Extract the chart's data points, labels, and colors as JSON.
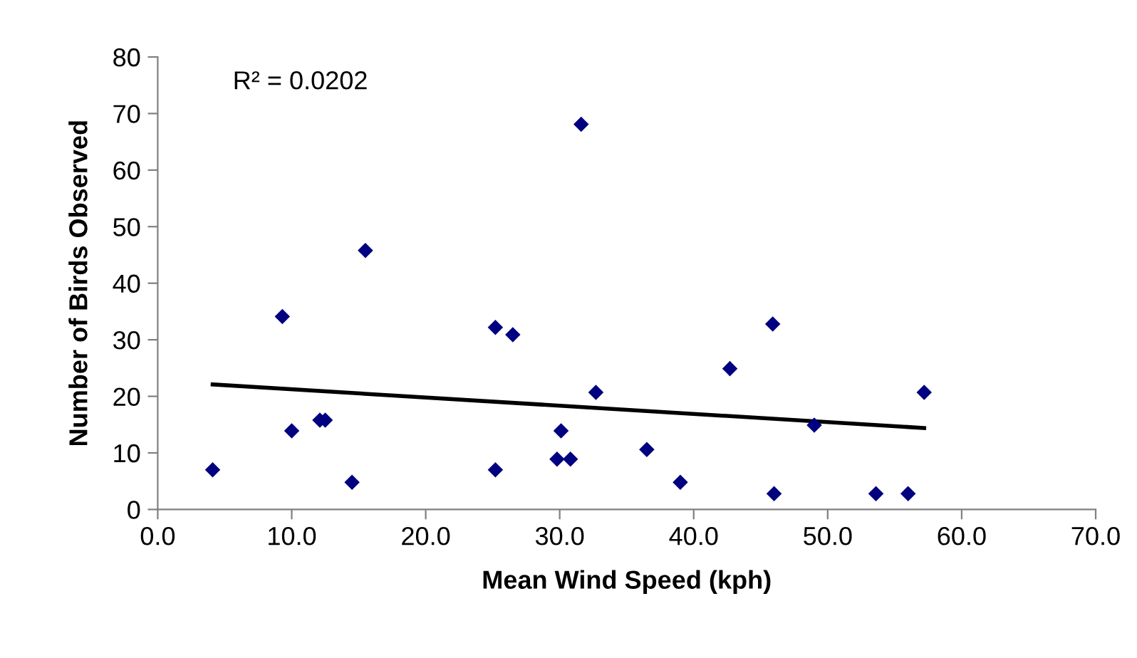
{
  "chart_data": {
    "type": "scatter",
    "xlabel": "Mean Wind Speed (kph)",
    "ylabel": "Number of Birds Observed",
    "annotations": [
      "R² = 0.0202"
    ],
    "series": [
      {
        "color": "#000080",
        "marker": "diamond",
        "x": [
          4.1,
          9.3,
          10.0,
          12.1,
          12.5,
          14.5,
          15.5,
          25.2,
          26.5,
          25.2,
          29.8,
          30.8,
          30.1,
          31.6,
          32.7,
          36.5,
          39.0,
          42.7,
          45.9,
          46.0,
          49.0,
          53.6,
          56.0,
          57.2
        ],
        "values": [
          7,
          34.1,
          13.9,
          15.8,
          15.8,
          4.8,
          45.8,
          32.2,
          30.9,
          7.0,
          8.9,
          8.9,
          13.9,
          68.1,
          20.7,
          10.6,
          4.8,
          24.9,
          32.8,
          2.8,
          14.9,
          2.8,
          2.8,
          20.7
        ]
      },
      {
        "type": "line",
        "color": "#000000",
        "marker": "none",
        "line_style": "solid",
        "x": [
          4.1,
          57.2
        ],
        "values": [
          22.1,
          14.4
        ]
      }
    ],
    "xlim": [
      0,
      70
    ],
    "xticks": [
      {
        "value": 0,
        "label": "0.0"
      },
      {
        "value": 10,
        "label": "10.0"
      },
      {
        "value": 20,
        "label": "20.0"
      },
      {
        "value": 30,
        "label": "30.0"
      },
      {
        "value": 40,
        "label": "40.0"
      },
      {
        "value": 50,
        "label": "50.0"
      },
      {
        "value": 60,
        "label": "60.0"
      },
      {
        "value": 70,
        "label": "70.0"
      }
    ],
    "ylim": [
      0,
      80
    ],
    "yticks": [
      0,
      10,
      20,
      30,
      40,
      50,
      60,
      70,
      80
    ],
    "grid": false,
    "legend": false
  }
}
